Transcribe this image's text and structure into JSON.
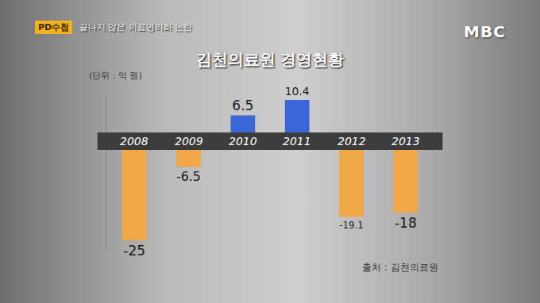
{
  "header": {
    "program": "PD수첩",
    "subtitle": "끝나지 않은 의료영리화 논란",
    "logo": "MBC"
  },
  "chart_data": {
    "type": "bar",
    "title": "김천의료원 경영현황",
    "unit": "(단위 : 억 원)",
    "source": "출처 : 김천의료원",
    "categories": [
      "2008",
      "2009",
      "2010",
      "2011",
      "2012",
      "2013"
    ],
    "values": [
      -25,
      -6.5,
      6.5,
      10.4,
      -19.1,
      -18
    ],
    "colors": [
      "#f0a848",
      "#f0a848",
      "#3a66d8",
      "#3a66d8",
      "#f0a848",
      "#f0a848"
    ],
    "ylim": [
      -28,
      12
    ],
    "yticks": [],
    "grid": false,
    "data_labels": true,
    "tick_labels": "x"
  }
}
